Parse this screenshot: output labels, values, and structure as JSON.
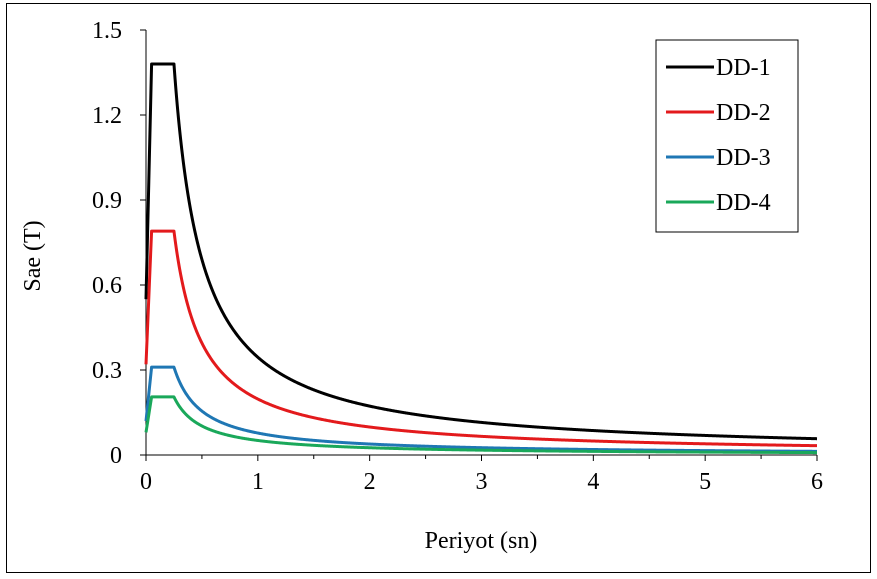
{
  "chart_data": {
    "type": "line",
    "title": "",
    "xlabel": "Periyot (sn)",
    "ylabel": "Sae (T)",
    "xlim": [
      0,
      6
    ],
    "ylim": [
      0,
      1.5
    ],
    "x_ticks": [
      0,
      1,
      2,
      3,
      4,
      5,
      6
    ],
    "x_tick_labels": [
      "0",
      "1",
      "2",
      "3",
      "4",
      "5",
      "6"
    ],
    "y_ticks": [
      0,
      0.3,
      0.6,
      0.9,
      1.2,
      1.5
    ],
    "y_tick_labels": [
      "0",
      "0.3",
      "0.6",
      "0.9",
      "1.2",
      "1.5"
    ],
    "grid": false,
    "legend_position": "top-right",
    "series": [
      {
        "name": "DD-1",
        "color": "#000000",
        "pga": 0.55,
        "plateau": 1.38,
        "TA": 0.05,
        "TB": 0.25
      },
      {
        "name": "DD-2",
        "color": "#e31a1c",
        "pga": 0.32,
        "plateau": 0.79,
        "TA": 0.05,
        "TB": 0.25
      },
      {
        "name": "DD-3",
        "color": "#1f77b4",
        "pga": 0.12,
        "plateau": 0.31,
        "TA": 0.05,
        "TB": 0.25
      },
      {
        "name": "DD-4",
        "color": "#1aa85a",
        "pga": 0.08,
        "plateau": 0.205,
        "TA": 0.05,
        "TB": 0.25
      }
    ]
  }
}
